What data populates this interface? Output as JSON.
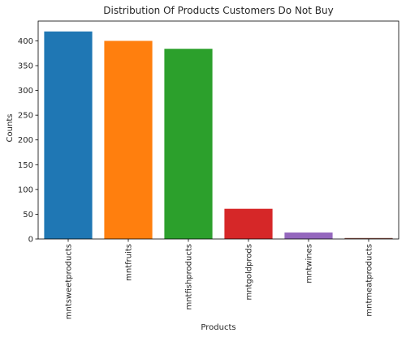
{
  "chart_data": {
    "type": "bar",
    "title": "Distribution Of Products Customers Do Not Buy",
    "xlabel": "Products",
    "ylabel": "Counts",
    "categories": [
      "mntsweetproducts",
      "mntfruits",
      "mntfishproducts",
      "mntgoldprods",
      "mntwines",
      "mntmeatproducts"
    ],
    "values": [
      419,
      400,
      384,
      61,
      13,
      2
    ],
    "colors": [
      "#1f77b4",
      "#ff7f0e",
      "#2ca02c",
      "#d62728",
      "#9467bd",
      "#8c564b"
    ],
    "ylim": [
      0,
      440
    ],
    "yticks": [
      0,
      50,
      100,
      150,
      200,
      250,
      300,
      350,
      400
    ],
    "grid": false,
    "legend": "none"
  }
}
